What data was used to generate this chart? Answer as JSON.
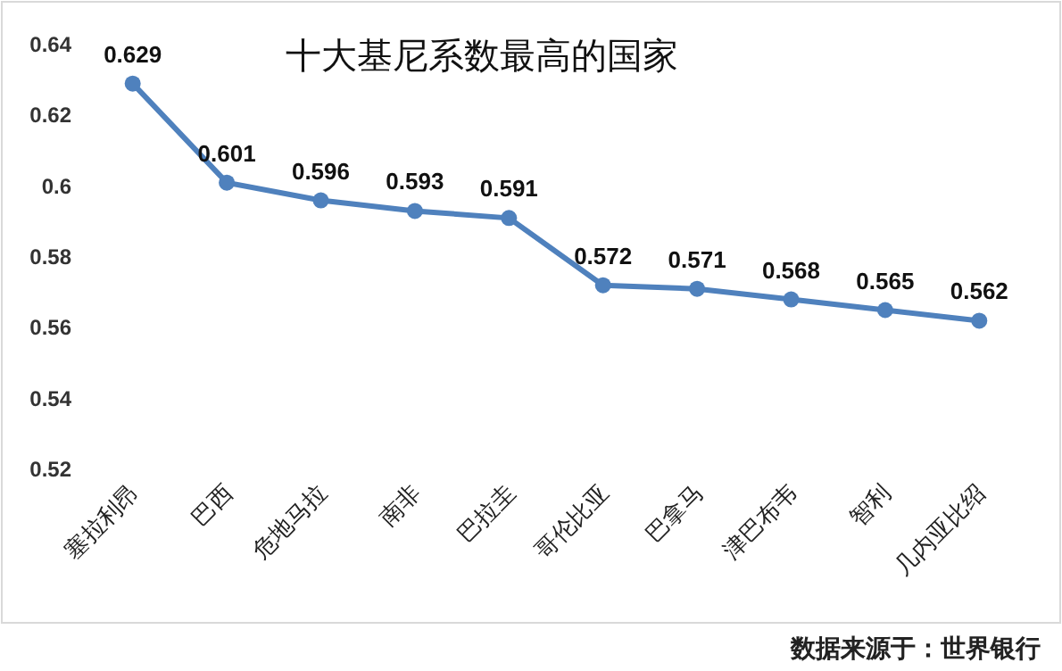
{
  "chart_data": {
    "type": "line",
    "title": "十大基尼系数最高的国家",
    "categories": [
      "塞拉利昂",
      "巴西",
      "危地马拉",
      "南非",
      "巴拉圭",
      "哥伦比亚",
      "巴拿马",
      "津巴布韦",
      "智利",
      "几内亚比绍"
    ],
    "values": [
      0.629,
      0.601,
      0.596,
      0.593,
      0.591,
      0.572,
      0.571,
      0.568,
      0.565,
      0.562
    ],
    "color": "#4f81bd",
    "marker": "circle",
    "data_labels": true,
    "ylim": [
      0.52,
      0.64
    ],
    "yticks": [
      0.52,
      0.54,
      0.56,
      0.58,
      0.6,
      0.62,
      0.64
    ],
    "annotations": [
      "数据来源于：世界银行"
    ]
  }
}
